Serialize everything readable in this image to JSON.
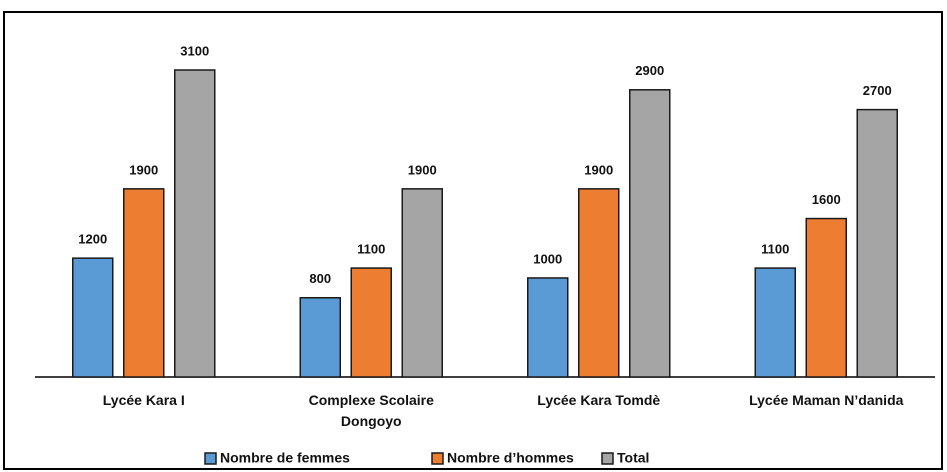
{
  "chart_data": {
    "type": "bar",
    "categories": [
      "Lycée Kara I",
      "Complexe Scolaire\nDongoyo",
      "Lycée Kara Tomdè",
      "Lycée Maman N’danida"
    ],
    "series": [
      {
        "name": "Nombre de femmes",
        "color": "#5b9bd5",
        "values": [
          1200,
          800,
          1000,
          1100
        ]
      },
      {
        "name": "Nombre d’hommes",
        "color": "#ed7d31",
        "values": [
          1900,
          1100,
          1900,
          1600
        ]
      },
      {
        "name": "Total",
        "color": "#a5a5a5",
        "values": [
          3100,
          1900,
          2900,
          2700
        ]
      }
    ],
    "legend": "bottom"
  }
}
